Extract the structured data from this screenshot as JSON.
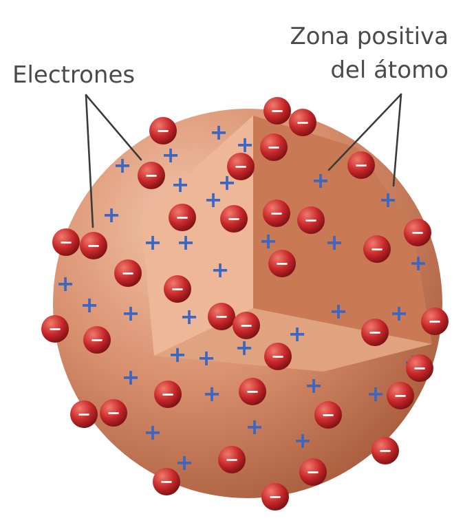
{
  "labels": {
    "electrons": "Electrones",
    "positive_zone_line1": "Zona positiva",
    "positive_zone_line2": "del átomo"
  },
  "symbols": {
    "electron": "−",
    "positive": "+"
  },
  "colors": {
    "sphere": "#d9906e",
    "sphere_shadow": "#a45838",
    "cut_face_light": "#eeb898",
    "cut_face_mid": "#e0a37f",
    "cut_face_dark": "#c97a55",
    "electron": "#c8282b",
    "positive_charge": "#3b67c2"
  }
}
